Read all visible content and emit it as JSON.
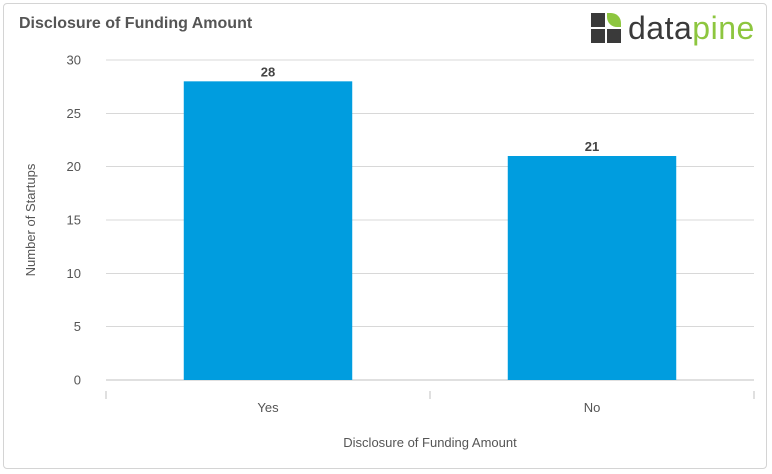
{
  "header": {
    "title": "Disclosure of Funding Amount",
    "logo": {
      "text_dark": "data",
      "text_accent": "pine",
      "icon": "datapine-squares-logo"
    }
  },
  "colors": {
    "bar": "#009ddf",
    "logo_dark": "#3a3a3a",
    "logo_accent": "#8dc63f",
    "grid": "#d8d8d8",
    "text": "#555555"
  },
  "chart_data": {
    "type": "bar",
    "title": "Disclosure of Funding Amount",
    "categories": [
      "Yes",
      "No"
    ],
    "values": [
      28,
      21
    ],
    "data_labels": [
      "28",
      "21"
    ],
    "xlabel": "Disclosure of Funding Amount",
    "ylabel": "Number of Startups",
    "ylim": [
      0,
      30
    ],
    "yticks": [
      0,
      5,
      10,
      15,
      20,
      25,
      30
    ],
    "grid": true,
    "legend": "none"
  }
}
